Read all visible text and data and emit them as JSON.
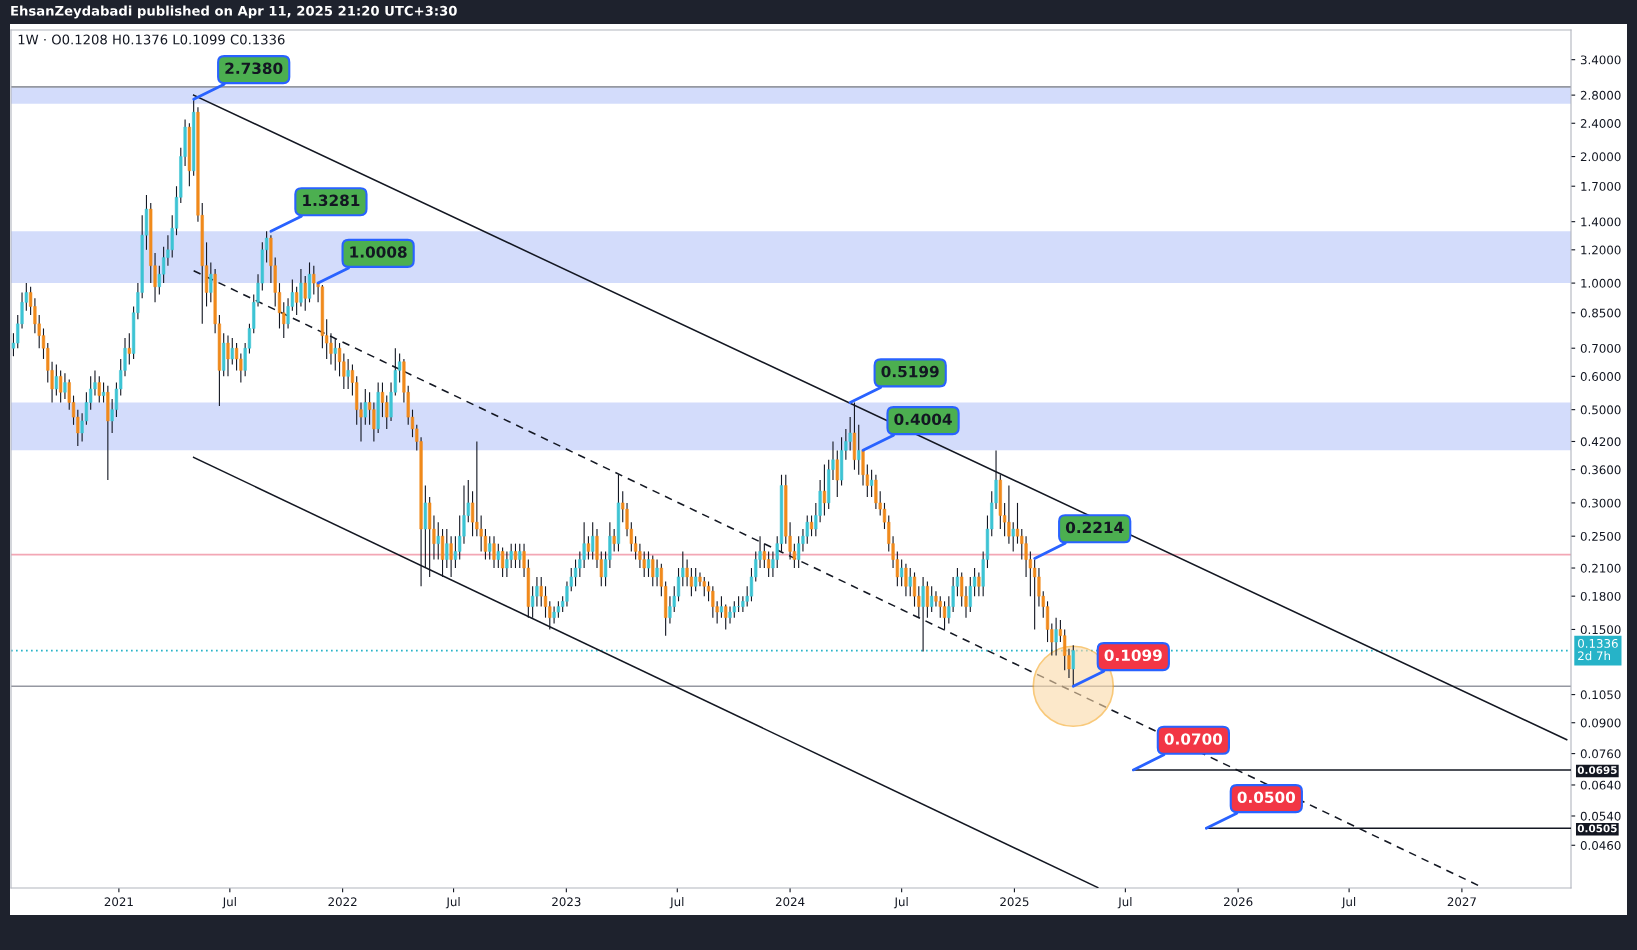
{
  "chart_data": {
    "type": "candlestick",
    "subtitle": "EhsanZeydabadi published on Apr 11, 2025 21:20 UTC+3:30",
    "title": "1W · O0.1208 H0.1376 L0.1099 C0.1336",
    "log": "y",
    "xlim": [
      "2020-07-09",
      "2027-06-28"
    ],
    "ylim": [
      0.0364,
      4.0
    ],
    "xticks": [
      {
        "value": "2021-01-01",
        "label": "2021"
      },
      {
        "value": "2021-07-01",
        "label": "Jul"
      },
      {
        "value": "2022-01-01",
        "label": "2022"
      },
      {
        "value": "2022-07-01",
        "label": "Jul"
      },
      {
        "value": "2023-01-01",
        "label": "2023"
      },
      {
        "value": "2023-07-01",
        "label": "Jul"
      },
      {
        "value": "2024-01-01",
        "label": "2024"
      },
      {
        "value": "2024-07-01",
        "label": "Jul"
      },
      {
        "value": "2025-01-01",
        "label": "2025"
      },
      {
        "value": "2025-07-01",
        "label": "Jul"
      },
      {
        "value": "2026-01-01",
        "label": "2026"
      },
      {
        "value": "2026-07-01",
        "label": "Jul"
      },
      {
        "value": "2027-01-01",
        "label": "2027"
      }
    ],
    "yticks": [
      {
        "value": 3.4,
        "label": "3.4000"
      },
      {
        "value": 2.8,
        "label": "2.8000"
      },
      {
        "value": 2.4,
        "label": "2.4000"
      },
      {
        "value": 2.0,
        "label": "2.0000"
      },
      {
        "value": 1.7,
        "label": "1.7000"
      },
      {
        "value": 1.4,
        "label": "1.4000"
      },
      {
        "value": 1.2,
        "label": "1.2000"
      },
      {
        "value": 1.0,
        "label": "1.0000"
      },
      {
        "value": 0.85,
        "label": "0.8500"
      },
      {
        "value": 0.7,
        "label": "0.7000"
      },
      {
        "value": 0.6,
        "label": "0.6000"
      },
      {
        "value": 0.5,
        "label": "0.5000"
      },
      {
        "value": 0.42,
        "label": "0.4200"
      },
      {
        "value": 0.36,
        "label": "0.3600"
      },
      {
        "value": 0.3,
        "label": "0.3000"
      },
      {
        "value": 0.25,
        "label": "0.2500"
      },
      {
        "value": 0.21,
        "label": "0.2100"
      },
      {
        "value": 0.18,
        "label": "0.1800"
      },
      {
        "value": 0.15,
        "label": "0.1500"
      },
      {
        "value": 0.105,
        "label": "0.1050"
      },
      {
        "value": 0.09,
        "label": "0.0900"
      },
      {
        "value": 0.076,
        "label": "0.0760"
      },
      {
        "value": 0.064,
        "label": "0.0640"
      },
      {
        "value": 0.054,
        "label": "0.0540"
      },
      {
        "value": 0.046,
        "label": "0.0460"
      }
    ],
    "x": [
      "2020-07-13",
      "2020-07-20",
      "2020-07-27",
      "2020-08-03",
      "2020-08-10",
      "2020-08-17",
      "2020-08-24",
      "2020-08-31",
      "2020-09-07",
      "2020-09-14",
      "2020-09-21",
      "2020-09-28",
      "2020-10-05",
      "2020-10-12",
      "2020-10-19",
      "2020-10-26",
      "2020-11-02",
      "2020-11-09",
      "2020-11-16",
      "2020-11-23",
      "2020-11-30",
      "2020-12-07",
      "2020-12-14",
      "2020-12-21",
      "2020-12-28",
      "2021-01-04",
      "2021-01-11",
      "2021-01-18",
      "2021-01-25",
      "2021-02-01",
      "2021-02-08",
      "2021-02-15",
      "2021-02-22",
      "2021-03-01",
      "2021-03-08",
      "2021-03-15",
      "2021-03-22",
      "2021-03-29",
      "2021-04-05",
      "2021-04-12",
      "2021-04-19",
      "2021-04-26",
      "2021-05-03",
      "2021-05-10",
      "2021-05-17",
      "2021-05-24",
      "2021-05-31",
      "2021-06-07",
      "2021-06-14",
      "2021-06-21",
      "2021-06-28",
      "2021-07-05",
      "2021-07-12",
      "2021-07-19",
      "2021-07-26",
      "2021-08-02",
      "2021-08-09",
      "2021-08-16",
      "2021-08-23",
      "2021-08-30",
      "2021-09-06",
      "2021-09-13",
      "2021-09-20",
      "2021-09-27",
      "2021-10-04",
      "2021-10-11",
      "2021-10-18",
      "2021-10-25",
      "2021-11-01",
      "2021-11-08",
      "2021-11-15",
      "2021-11-22",
      "2021-11-29",
      "2021-12-06",
      "2021-12-13",
      "2021-12-20",
      "2021-12-27",
      "2022-01-03",
      "2022-01-10",
      "2022-01-17",
      "2022-01-24",
      "2022-01-31",
      "2022-02-07",
      "2022-02-14",
      "2022-02-21",
      "2022-02-28",
      "2022-03-07",
      "2022-03-14",
      "2022-03-21",
      "2022-03-28",
      "2022-04-04",
      "2022-04-11",
      "2022-04-18",
      "2022-04-25",
      "2022-05-02",
      "2022-05-09",
      "2022-05-16",
      "2022-05-23",
      "2022-05-30",
      "2022-06-06",
      "2022-06-13",
      "2022-06-20",
      "2022-06-27",
      "2022-07-04",
      "2022-07-11",
      "2022-07-18",
      "2022-07-25",
      "2022-08-01",
      "2022-08-08",
      "2022-08-15",
      "2022-08-22",
      "2022-08-29",
      "2022-09-05",
      "2022-09-12",
      "2022-09-19",
      "2022-09-26",
      "2022-10-03",
      "2022-10-10",
      "2022-10-17",
      "2022-10-24",
      "2022-10-31",
      "2022-11-07",
      "2022-11-14",
      "2022-11-21",
      "2022-11-28",
      "2022-12-05",
      "2022-12-12",
      "2022-12-19",
      "2022-12-26",
      "2023-01-02",
      "2023-01-09",
      "2023-01-16",
      "2023-01-23",
      "2023-01-30",
      "2023-02-06",
      "2023-02-13",
      "2023-02-20",
      "2023-02-27",
      "2023-03-06",
      "2023-03-13",
      "2023-03-20",
      "2023-03-27",
      "2023-04-03",
      "2023-04-10",
      "2023-04-17",
      "2023-04-24",
      "2023-05-01",
      "2023-05-08",
      "2023-05-15",
      "2023-05-22",
      "2023-05-29",
      "2023-06-05",
      "2023-06-12",
      "2023-06-19",
      "2023-06-26",
      "2023-07-03",
      "2023-07-10",
      "2023-07-17",
      "2023-07-24",
      "2023-07-31",
      "2023-08-07",
      "2023-08-14",
      "2023-08-21",
      "2023-08-28",
      "2023-09-04",
      "2023-09-11",
      "2023-09-18",
      "2023-09-25",
      "2023-10-02",
      "2023-10-09",
      "2023-10-16",
      "2023-10-23",
      "2023-10-30",
      "2023-11-06",
      "2023-11-13",
      "2023-11-20",
      "2023-11-27",
      "2023-12-04",
      "2023-12-11",
      "2023-12-18",
      "2023-12-25",
      "2024-01-01",
      "2024-01-08",
      "2024-01-15",
      "2024-01-22",
      "2024-01-29",
      "2024-02-05",
      "2024-02-12",
      "2024-02-19",
      "2024-02-26",
      "2024-03-04",
      "2024-03-11",
      "2024-03-18",
      "2024-03-25",
      "2024-04-01",
      "2024-04-08",
      "2024-04-15",
      "2024-04-22",
      "2024-04-29",
      "2024-05-06",
      "2024-05-13",
      "2024-05-20",
      "2024-05-27",
      "2024-06-03",
      "2024-06-10",
      "2024-06-17",
      "2024-06-24",
      "2024-07-01",
      "2024-07-08",
      "2024-07-15",
      "2024-07-22",
      "2024-07-29",
      "2024-08-05",
      "2024-08-12",
      "2024-08-19",
      "2024-08-26",
      "2024-09-02",
      "2024-09-09",
      "2024-09-16",
      "2024-09-23",
      "2024-09-30",
      "2024-10-07",
      "2024-10-14",
      "2024-10-21",
      "2024-10-28",
      "2024-11-04",
      "2024-11-11",
      "2024-11-18",
      "2024-11-25",
      "2024-12-02",
      "2024-12-09",
      "2024-12-16",
      "2024-12-23",
      "2024-12-30",
      "2025-01-06",
      "2025-01-13",
      "2025-01-20",
      "2025-01-27",
      "2025-02-03",
      "2025-02-10",
      "2025-02-17",
      "2025-02-24",
      "2025-03-03",
      "2025-03-10",
      "2025-03-17",
      "2025-03-24",
      "2025-03-31",
      "2025-04-07"
    ],
    "ohlc": [
      [
        0.7,
        0.76,
        0.67,
        0.72
      ],
      [
        0.72,
        0.84,
        0.7,
        0.8
      ],
      [
        0.8,
        0.95,
        0.78,
        0.9
      ],
      [
        0.9,
        1.0,
        0.86,
        0.95
      ],
      [
        0.95,
        0.98,
        0.84,
        0.88
      ],
      [
        0.88,
        0.92,
        0.76,
        0.8
      ],
      [
        0.8,
        0.84,
        0.7,
        0.75
      ],
      [
        0.75,
        0.78,
        0.66,
        0.7
      ],
      [
        0.7,
        0.72,
        0.58,
        0.62
      ],
      [
        0.62,
        0.65,
        0.52,
        0.56
      ],
      [
        0.56,
        0.64,
        0.54,
        0.6
      ],
      [
        0.6,
        0.62,
        0.52,
        0.55
      ],
      [
        0.55,
        0.61,
        0.53,
        0.58
      ],
      [
        0.58,
        0.59,
        0.5,
        0.52
      ],
      [
        0.52,
        0.54,
        0.46,
        0.48
      ],
      [
        0.48,
        0.5,
        0.41,
        0.44
      ],
      [
        0.44,
        0.49,
        0.42,
        0.47
      ],
      [
        0.47,
        0.55,
        0.46,
        0.52
      ],
      [
        0.52,
        0.6,
        0.5,
        0.56
      ],
      [
        0.56,
        0.62,
        0.54,
        0.58
      ],
      [
        0.58,
        0.6,
        0.52,
        0.54
      ],
      [
        0.54,
        0.58,
        0.52,
        0.55
      ],
      [
        0.55,
        0.57,
        0.34,
        0.47
      ],
      [
        0.47,
        0.53,
        0.44,
        0.5
      ],
      [
        0.5,
        0.58,
        0.48,
        0.56
      ],
      [
        0.56,
        0.66,
        0.54,
        0.62
      ],
      [
        0.62,
        0.74,
        0.6,
        0.7
      ],
      [
        0.7,
        0.76,
        0.64,
        0.68
      ],
      [
        0.68,
        0.88,
        0.66,
        0.85
      ],
      [
        0.85,
        1.0,
        0.82,
        0.95
      ],
      [
        0.95,
        1.45,
        0.92,
        1.3
      ],
      [
        1.3,
        1.62,
        1.2,
        1.5
      ],
      [
        1.5,
        1.55,
        1.0,
        1.1
      ],
      [
        1.1,
        1.18,
        0.9,
        0.98
      ],
      [
        0.98,
        1.1,
        0.94,
        1.05
      ],
      [
        1.05,
        1.22,
        1.0,
        1.15
      ],
      [
        1.15,
        1.3,
        1.1,
        1.2
      ],
      [
        1.2,
        1.45,
        1.15,
        1.35
      ],
      [
        1.35,
        1.7,
        1.3,
        1.6
      ],
      [
        1.6,
        2.1,
        1.55,
        2.0
      ],
      [
        2.0,
        2.45,
        1.9,
        2.35
      ],
      [
        2.35,
        2.4,
        1.7,
        1.85
      ],
      [
        1.85,
        2.738,
        1.8,
        2.55
      ],
      [
        2.55,
        2.62,
        1.4,
        1.45
      ],
      [
        1.45,
        1.55,
        0.8,
        1.1
      ],
      [
        1.1,
        1.25,
        0.88,
        0.95
      ],
      [
        0.95,
        1.12,
        0.9,
        1.05
      ],
      [
        1.05,
        1.08,
        0.76,
        0.8
      ],
      [
        0.8,
        0.84,
        0.51,
        0.62
      ],
      [
        0.62,
        0.76,
        0.6,
        0.72
      ],
      [
        0.72,
        0.75,
        0.6,
        0.66
      ],
      [
        0.66,
        0.74,
        0.64,
        0.7
      ],
      [
        0.7,
        0.72,
        0.62,
        0.66
      ],
      [
        0.66,
        0.68,
        0.58,
        0.62
      ],
      [
        0.62,
        0.72,
        0.6,
        0.7
      ],
      [
        0.7,
        0.8,
        0.68,
        0.78
      ],
      [
        0.78,
        0.94,
        0.76,
        0.9
      ],
      [
        0.9,
        1.05,
        0.88,
        1.0
      ],
      [
        1.0,
        1.25,
        0.96,
        1.2
      ],
      [
        1.2,
        1.3281,
        1.12,
        1.28
      ],
      [
        1.28,
        1.3,
        1.0,
        1.1
      ],
      [
        1.1,
        1.15,
        0.88,
        0.95
      ],
      [
        0.95,
        1.0,
        0.78,
        0.85
      ],
      [
        0.85,
        0.9,
        0.74,
        0.8
      ],
      [
        0.8,
        0.92,
        0.78,
        0.88
      ],
      [
        0.88,
        1.02,
        0.86,
        0.95
      ],
      [
        0.95,
        0.98,
        0.84,
        0.9
      ],
      [
        0.9,
        1.08,
        0.88,
        1.0
      ],
      [
        1.0,
        1.04,
        0.86,
        0.92
      ],
      [
        0.92,
        1.12,
        0.9,
        1.05
      ],
      [
        1.05,
        1.1,
        0.94,
        1.0
      ],
      [
        1.0,
        1.0008,
        0.9,
        0.98
      ],
      [
        0.98,
        0.99,
        0.7,
        0.75
      ],
      [
        0.75,
        0.82,
        0.66,
        0.72
      ],
      [
        0.72,
        0.76,
        0.64,
        0.68
      ],
      [
        0.68,
        0.74,
        0.62,
        0.7
      ],
      [
        0.7,
        0.72,
        0.6,
        0.65
      ],
      [
        0.65,
        0.68,
        0.56,
        0.6
      ],
      [
        0.6,
        0.66,
        0.56,
        0.62
      ],
      [
        0.62,
        0.64,
        0.54,
        0.58
      ],
      [
        0.58,
        0.6,
        0.46,
        0.5
      ],
      [
        0.5,
        0.52,
        0.42,
        0.48
      ],
      [
        0.48,
        0.56,
        0.46,
        0.52
      ],
      [
        0.52,
        0.55,
        0.46,
        0.5
      ],
      [
        0.5,
        0.52,
        0.42,
        0.45
      ],
      [
        0.45,
        0.58,
        0.44,
        0.55
      ],
      [
        0.55,
        0.58,
        0.48,
        0.52
      ],
      [
        0.52,
        0.54,
        0.45,
        0.48
      ],
      [
        0.48,
        0.58,
        0.47,
        0.55
      ],
      [
        0.55,
        0.7,
        0.54,
        0.62
      ],
      [
        0.62,
        0.68,
        0.58,
        0.65
      ],
      [
        0.65,
        0.66,
        0.52,
        0.55
      ],
      [
        0.55,
        0.57,
        0.46,
        0.48
      ],
      [
        0.48,
        0.5,
        0.43,
        0.45
      ],
      [
        0.45,
        0.46,
        0.4,
        0.42
      ],
      [
        0.42,
        0.43,
        0.19,
        0.26
      ],
      [
        0.26,
        0.33,
        0.21,
        0.3
      ],
      [
        0.3,
        0.31,
        0.2,
        0.26
      ],
      [
        0.26,
        0.28,
        0.22,
        0.24
      ],
      [
        0.24,
        0.27,
        0.22,
        0.25
      ],
      [
        0.25,
        0.26,
        0.2,
        0.22
      ],
      [
        0.22,
        0.26,
        0.21,
        0.24
      ],
      [
        0.24,
        0.25,
        0.2,
        0.22
      ],
      [
        0.22,
        0.25,
        0.21,
        0.23
      ],
      [
        0.23,
        0.28,
        0.22,
        0.25
      ],
      [
        0.25,
        0.33,
        0.24,
        0.28
      ],
      [
        0.28,
        0.34,
        0.27,
        0.3
      ],
      [
        0.3,
        0.32,
        0.25,
        0.27
      ],
      [
        0.27,
        0.42,
        0.25,
        0.26
      ],
      [
        0.26,
        0.28,
        0.23,
        0.25
      ],
      [
        0.25,
        0.26,
        0.22,
        0.23
      ],
      [
        0.23,
        0.25,
        0.22,
        0.24
      ],
      [
        0.24,
        0.25,
        0.21,
        0.22
      ],
      [
        0.22,
        0.24,
        0.21,
        0.23
      ],
      [
        0.23,
        0.235,
        0.2,
        0.21
      ],
      [
        0.21,
        0.23,
        0.2,
        0.22
      ],
      [
        0.22,
        0.24,
        0.21,
        0.23
      ],
      [
        0.23,
        0.24,
        0.21,
        0.22
      ],
      [
        0.22,
        0.24,
        0.21,
        0.23
      ],
      [
        0.23,
        0.24,
        0.2,
        0.21
      ],
      [
        0.21,
        0.22,
        0.16,
        0.17
      ],
      [
        0.17,
        0.19,
        0.16,
        0.18
      ],
      [
        0.18,
        0.2,
        0.17,
        0.19
      ],
      [
        0.19,
        0.2,
        0.17,
        0.18
      ],
      [
        0.18,
        0.19,
        0.16,
        0.17
      ],
      [
        0.17,
        0.175,
        0.15,
        0.16
      ],
      [
        0.16,
        0.17,
        0.155,
        0.165
      ],
      [
        0.165,
        0.175,
        0.16,
        0.17
      ],
      [
        0.17,
        0.18,
        0.165,
        0.175
      ],
      [
        0.175,
        0.195,
        0.17,
        0.19
      ],
      [
        0.19,
        0.21,
        0.185,
        0.2
      ],
      [
        0.2,
        0.22,
        0.19,
        0.21
      ],
      [
        0.21,
        0.23,
        0.2,
        0.22
      ],
      [
        0.22,
        0.27,
        0.21,
        0.24
      ],
      [
        0.24,
        0.25,
        0.22,
        0.23
      ],
      [
        0.23,
        0.27,
        0.22,
        0.25
      ],
      [
        0.25,
        0.26,
        0.21,
        0.22
      ],
      [
        0.22,
        0.23,
        0.19,
        0.2
      ],
      [
        0.2,
        0.23,
        0.19,
        0.22
      ],
      [
        0.22,
        0.27,
        0.21,
        0.25
      ],
      [
        0.25,
        0.26,
        0.23,
        0.24
      ],
      [
        0.24,
        0.35,
        0.23,
        0.3
      ],
      [
        0.3,
        0.32,
        0.27,
        0.29
      ],
      [
        0.29,
        0.3,
        0.25,
        0.26
      ],
      [
        0.26,
        0.27,
        0.23,
        0.24
      ],
      [
        0.24,
        0.25,
        0.22,
        0.23
      ],
      [
        0.23,
        0.24,
        0.21,
        0.22
      ],
      [
        0.22,
        0.23,
        0.2,
        0.21
      ],
      [
        0.21,
        0.23,
        0.2,
        0.22
      ],
      [
        0.22,
        0.225,
        0.19,
        0.2
      ],
      [
        0.2,
        0.22,
        0.19,
        0.21
      ],
      [
        0.21,
        0.215,
        0.18,
        0.19
      ],
      [
        0.19,
        0.195,
        0.145,
        0.16
      ],
      [
        0.16,
        0.18,
        0.155,
        0.17
      ],
      [
        0.17,
        0.19,
        0.165,
        0.18
      ],
      [
        0.18,
        0.21,
        0.175,
        0.2
      ],
      [
        0.2,
        0.23,
        0.19,
        0.21
      ],
      [
        0.21,
        0.22,
        0.19,
        0.2
      ],
      [
        0.2,
        0.21,
        0.18,
        0.19
      ],
      [
        0.19,
        0.21,
        0.185,
        0.2
      ],
      [
        0.2,
        0.205,
        0.19,
        0.195
      ],
      [
        0.195,
        0.2,
        0.18,
        0.19
      ],
      [
        0.19,
        0.195,
        0.175,
        0.185
      ],
      [
        0.185,
        0.19,
        0.16,
        0.17
      ],
      [
        0.17,
        0.175,
        0.155,
        0.165
      ],
      [
        0.165,
        0.18,
        0.16,
        0.17
      ],
      [
        0.17,
        0.172,
        0.15,
        0.16
      ],
      [
        0.16,
        0.17,
        0.155,
        0.165
      ],
      [
        0.165,
        0.175,
        0.16,
        0.17
      ],
      [
        0.17,
        0.18,
        0.165,
        0.17
      ],
      [
        0.17,
        0.18,
        0.165,
        0.175
      ],
      [
        0.175,
        0.19,
        0.17,
        0.18
      ],
      [
        0.18,
        0.21,
        0.175,
        0.2
      ],
      [
        0.2,
        0.23,
        0.195,
        0.22
      ],
      [
        0.22,
        0.25,
        0.21,
        0.23
      ],
      [
        0.23,
        0.24,
        0.21,
        0.22
      ],
      [
        0.22,
        0.23,
        0.2,
        0.21
      ],
      [
        0.21,
        0.23,
        0.2,
        0.22
      ],
      [
        0.22,
        0.25,
        0.21,
        0.24
      ],
      [
        0.24,
        0.35,
        0.23,
        0.33
      ],
      [
        0.33,
        0.35,
        0.24,
        0.25
      ],
      [
        0.25,
        0.27,
        0.22,
        0.23
      ],
      [
        0.23,
        0.24,
        0.21,
        0.22
      ],
      [
        0.22,
        0.25,
        0.21,
        0.24
      ],
      [
        0.24,
        0.26,
        0.23,
        0.25
      ],
      [
        0.25,
        0.28,
        0.24,
        0.27
      ],
      [
        0.27,
        0.28,
        0.25,
        0.26
      ],
      [
        0.26,
        0.3,
        0.25,
        0.28
      ],
      [
        0.28,
        0.34,
        0.27,
        0.32
      ],
      [
        0.32,
        0.37,
        0.28,
        0.3
      ],
      [
        0.3,
        0.38,
        0.29,
        0.36
      ],
      [
        0.36,
        0.42,
        0.34,
        0.38
      ],
      [
        0.38,
        0.4,
        0.31,
        0.34
      ],
      [
        0.34,
        0.43,
        0.33,
        0.4
      ],
      [
        0.4,
        0.45,
        0.38,
        0.42
      ],
      [
        0.42,
        0.48,
        0.4,
        0.44
      ],
      [
        0.44,
        0.5199,
        0.36,
        0.38
      ],
      [
        0.38,
        0.46,
        0.35,
        0.4
      ],
      [
        0.4,
        0.4004,
        0.33,
        0.35
      ],
      [
        0.35,
        0.37,
        0.31,
        0.33
      ],
      [
        0.33,
        0.36,
        0.31,
        0.34
      ],
      [
        0.34,
        0.35,
        0.29,
        0.3
      ],
      [
        0.3,
        0.32,
        0.28,
        0.29
      ],
      [
        0.29,
        0.3,
        0.26,
        0.27
      ],
      [
        0.27,
        0.28,
        0.23,
        0.24
      ],
      [
        0.24,
        0.25,
        0.21,
        0.22
      ],
      [
        0.22,
        0.23,
        0.19,
        0.2
      ],
      [
        0.2,
        0.22,
        0.19,
        0.21
      ],
      [
        0.21,
        0.215,
        0.18,
        0.19
      ],
      [
        0.19,
        0.21,
        0.18,
        0.2
      ],
      [
        0.2,
        0.205,
        0.17,
        0.18
      ],
      [
        0.18,
        0.19,
        0.16,
        0.17
      ],
      [
        0.17,
        0.2,
        0.133,
        0.19
      ],
      [
        0.19,
        0.195,
        0.16,
        0.17
      ],
      [
        0.17,
        0.19,
        0.165,
        0.18
      ],
      [
        0.18,
        0.185,
        0.17,
        0.175
      ],
      [
        0.175,
        0.18,
        0.16,
        0.17
      ],
      [
        0.17,
        0.175,
        0.15,
        0.16
      ],
      [
        0.16,
        0.18,
        0.155,
        0.17
      ],
      [
        0.17,
        0.2,
        0.165,
        0.19
      ],
      [
        0.19,
        0.21,
        0.18,
        0.2
      ],
      [
        0.2,
        0.205,
        0.17,
        0.18
      ],
      [
        0.18,
        0.19,
        0.16,
        0.17
      ],
      [
        0.17,
        0.2,
        0.165,
        0.19
      ],
      [
        0.19,
        0.21,
        0.18,
        0.2
      ],
      [
        0.2,
        0.205,
        0.18,
        0.19
      ],
      [
        0.19,
        0.23,
        0.18,
        0.22
      ],
      [
        0.22,
        0.28,
        0.21,
        0.26
      ],
      [
        0.26,
        0.32,
        0.25,
        0.3
      ],
      [
        0.3,
        0.4,
        0.29,
        0.34
      ],
      [
        0.34,
        0.35,
        0.26,
        0.28
      ],
      [
        0.28,
        0.3,
        0.25,
        0.27
      ],
      [
        0.27,
        0.33,
        0.24,
        0.25
      ],
      [
        0.25,
        0.27,
        0.23,
        0.26
      ],
      [
        0.26,
        0.3,
        0.24,
        0.25
      ],
      [
        0.25,
        0.26,
        0.22,
        0.24
      ],
      [
        0.24,
        0.25,
        0.2,
        0.22
      ],
      [
        0.22,
        0.23,
        0.18,
        0.21
      ],
      [
        0.21,
        0.22,
        0.15,
        0.2
      ],
      [
        0.2,
        0.21,
        0.17,
        0.18
      ],
      [
        0.18,
        0.185,
        0.16,
        0.17
      ],
      [
        0.17,
        0.175,
        0.14,
        0.15
      ],
      [
        0.15,
        0.155,
        0.13,
        0.14
      ],
      [
        0.14,
        0.16,
        0.13,
        0.15
      ],
      [
        0.15,
        0.158,
        0.14,
        0.145
      ],
      [
        0.145,
        0.15,
        0.12,
        0.13
      ],
      [
        0.13,
        0.135,
        0.115,
        0.1208
      ],
      [
        0.1208,
        0.1376,
        0.1099,
        0.1336
      ]
    ],
    "series": [
      {
        "type": "line",
        "x": [
          "2021-05-03",
          "2027-06-21"
        ],
        "values": [
          2.8,
          0.082
        ],
        "color": "#131722",
        "line_style": "solid"
      },
      {
        "type": "line",
        "x": [
          "2021-05-03",
          "2027-02-02"
        ],
        "values": [
          1.07,
          0.0366
        ],
        "color": "#131722",
        "line_style": "dashed"
      },
      {
        "type": "line",
        "x": [
          "2021-05-03",
          "2025-05-17"
        ],
        "values": [
          0.385,
          0.0365
        ],
        "color": "#131722",
        "line_style": "solid"
      },
      {
        "type": "line",
        "x": [
          "2025-07-14",
          "2027-06-28"
        ],
        "values": [
          0.0695,
          0.0695
        ],
        "color": "#131722",
        "line_style": "solid"
      },
      {
        "type": "line",
        "x": [
          "2025-11-10",
          "2027-06-28"
        ],
        "values": [
          0.0505,
          0.0505
        ],
        "color": "#131722",
        "line_style": "solid"
      }
    ],
    "bands": [
      {
        "axis": "y",
        "from": 2.67,
        "to": 2.93,
        "color": "#d3dcfb"
      },
      {
        "axis": "y",
        "from": 1.0008,
        "to": 1.3281,
        "color": "#d3dcfb"
      },
      {
        "axis": "y",
        "from": 0.4004,
        "to": 0.5199,
        "color": "#d3dcfb"
      }
    ],
    "ref_lines": [
      {
        "axis": "y",
        "value": 2.93,
        "color": "#9598a1",
        "line_style": "solid"
      },
      {
        "axis": "y",
        "value": 0.226,
        "color": "#f3a7b5",
        "line_style": "solid"
      },
      {
        "axis": "y",
        "value": 0.1099,
        "color": "#9598a1",
        "line_style": "solid"
      },
      {
        "axis": "y",
        "value": 0.1336,
        "label": "0.1336\n2d 7h",
        "color": "#26b3c8",
        "line_style": "dotted"
      }
    ],
    "annotations": [
      {
        "text": "2.7380",
        "x": "2021-05-03",
        "y": 2.738
      },
      {
        "text": "1.3281",
        "x": "2021-09-06",
        "y": 1.3281
      },
      {
        "text": "1.0008",
        "x": "2021-11-22",
        "y": 1.0008
      },
      {
        "text": "0.5199",
        "x": "2024-04-08",
        "y": 0.5199
      },
      {
        "text": "0.4004",
        "x": "2024-04-29",
        "y": 0.4004
      },
      {
        "text": "0.2214",
        "x": "2025-02-03",
        "y": 0.2214
      },
      {
        "text": "0.1099",
        "x": "2025-04-07",
        "y": 0.1099
      },
      {
        "text": "0.0700",
        "x": "2025-07-14",
        "y": 0.0695
      },
      {
        "text": "0.0500",
        "x": "2025-11-10",
        "y": 0.0505
      },
      {
        "text": "0.0695",
        "x": "2027-06-28",
        "y": 0.0695
      },
      {
        "text": "0.0505",
        "x": "2027-06-28",
        "y": 0.0505
      }
    ]
  }
}
